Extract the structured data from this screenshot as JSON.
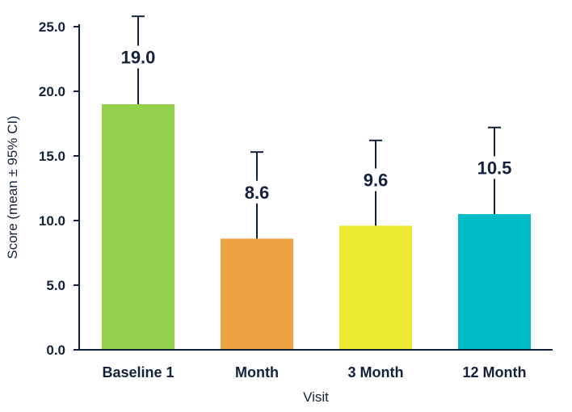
{
  "chart_data": {
    "type": "bar",
    "xlabel": "Visit",
    "ylabel": "Score (mean ± 95% CI)",
    "ylim": [
      0,
      25
    ],
    "yticks": [
      "0.0",
      "5.0",
      "10.0",
      "15.0",
      "20.0",
      "25.0"
    ],
    "categories": [
      "Baseline 1",
      "Month",
      "3 Month",
      "12 Month"
    ],
    "values": [
      19.0,
      8.6,
      9.6,
      10.5
    ],
    "value_labels": [
      "19.0",
      "8.6",
      "9.6",
      "10.5"
    ],
    "ci_upper": [
      25.8,
      15.3,
      16.2,
      17.2
    ],
    "colors": [
      "#92d14b",
      "#eea241",
      "#ece933",
      "#00bcc6"
    ],
    "error_bars": "upper only",
    "grid": false,
    "legend": "none"
  }
}
